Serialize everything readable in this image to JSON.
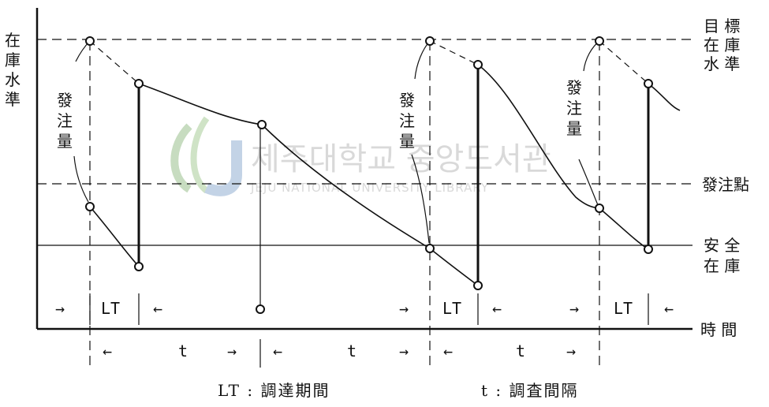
{
  "labels": {
    "y_axis": [
      "在",
      "庫",
      "水",
      "準"
    ],
    "x_axis": "時 間",
    "target_level": [
      "目 標",
      "在 庫",
      "水 準"
    ],
    "reorder_point": "發注點",
    "safety_stock": [
      "安 全",
      "在 庫"
    ],
    "order_qty": [
      "發",
      "注",
      "量"
    ],
    "lt": "LT",
    "t": "t",
    "arrow_right": "→",
    "arrow_left": "←"
  },
  "legend": {
    "lt_def": "LT : 調達期間",
    "t_def": "t : 調査間隔"
  },
  "watermark": {
    "korean": "제주대학교 중앙도서관",
    "english": "JEJU NATIONAL UNIVERSITY LIBRARY"
  },
  "colors": {
    "ink": "#111111",
    "watermark": "#d9d9d9",
    "logo_green": "#c7dcc0",
    "logo_blue": "#c3d3e6"
  }
}
